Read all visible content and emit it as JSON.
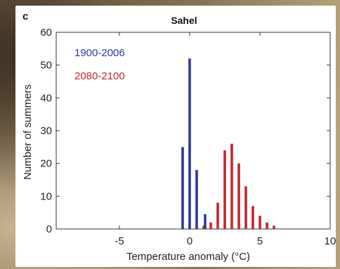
{
  "panel_letter": "c",
  "chart_data": {
    "type": "bar",
    "title": "Sahel",
    "xlabel": "Temperature anomaly (°C)",
    "ylabel": "Number of summers",
    "xlim": [
      -9.5,
      10
    ],
    "ylim": [
      0,
      60
    ],
    "xticks": [
      -5,
      0,
      5,
      10
    ],
    "yticks": [
      0,
      10,
      20,
      30,
      40,
      50,
      60
    ],
    "grid": false,
    "legend_placement": "top-left",
    "series": [
      {
        "name": "1900-2006",
        "color": "#2a3a9e",
        "x": [
          -0.5,
          0,
          0.5
        ],
        "values": [
          25,
          52,
          18
        ]
      },
      {
        "name": "2080-2100",
        "color": "#c0272d",
        "x": [
          1,
          1.5,
          2,
          2.5,
          3,
          3.5,
          4,
          4.5,
          5,
          5.5,
          6
        ],
        "values": [
          1,
          2,
          8,
          24,
          26,
          20,
          13,
          7,
          4,
          2,
          1
        ]
      },
      {
        "name": "",
        "color": "#2a3a9e",
        "x": [
          1.1
        ],
        "values": [
          4.5
        ]
      }
    ]
  }
}
